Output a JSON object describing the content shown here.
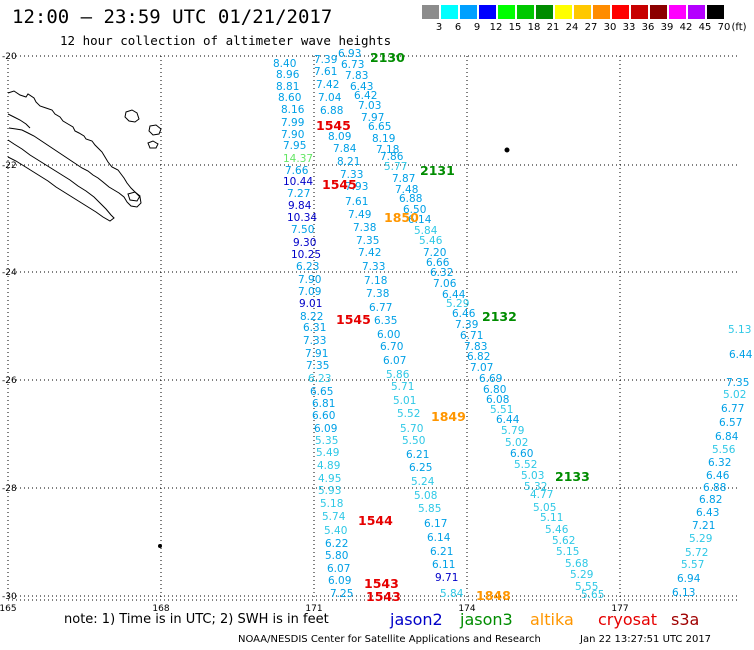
{
  "header": {
    "title": "12:00 – 23:59 UTC 01/21/2017",
    "subtitle": "12 hour collection of altimeter wave heights"
  },
  "colorbar": {
    "colors": [
      "#8c8c8c",
      "#00ffff",
      "#00a0ff",
      "#0000ff",
      "#00ff00",
      "#00c800",
      "#008c00",
      "#ffff00",
      "#ffc800",
      "#ff8c00",
      "#ff0000",
      "#c80000",
      "#8c0000",
      "#ff00ff",
      "#b400ff",
      "#000000"
    ],
    "labels": [
      "3",
      "6",
      "9",
      "12",
      "15",
      "18",
      "21",
      "24",
      "27",
      "30",
      "33",
      "36",
      "39",
      "42",
      "45",
      "70"
    ],
    "unit": "(ft)"
  },
  "colors": {
    "jason2": "#0000c8",
    "jason3": "#008c00",
    "altika": "#ff9600",
    "cryosat": "#e60000",
    "s3a": "#a00000",
    "light_blue": "#00a0e6",
    "light_cyan": "#2ec8e6",
    "light_green": "#64e664"
  },
  "axes": {
    "lat_labels": [
      "-20",
      "-22",
      "-24",
      "-26",
      "-28",
      "-30"
    ],
    "lon_labels": [
      "165",
      "168",
      "171",
      "174",
      "177"
    ]
  },
  "chart_data": {
    "type": "map",
    "measurements": [
      {
        "v": "8.40",
        "c": "light_blue"
      },
      {
        "v": "8.96",
        "c": "light_blue"
      },
      {
        "v": "8.81",
        "c": "light_blue"
      },
      {
        "v": "8.60",
        "c": "light_blue"
      },
      {
        "v": "8.16",
        "c": "light_blue"
      },
      {
        "v": "7.99",
        "c": "light_blue"
      },
      {
        "v": "7.90",
        "c": "light_blue"
      },
      {
        "v": "7.95",
        "c": "light_blue"
      },
      {
        "v": "14.37",
        "c": "light_green"
      },
      {
        "v": "7.66",
        "c": "light_blue"
      },
      {
        "v": "10.44",
        "c": "jason2"
      },
      {
        "v": "7.27",
        "c": "light_blue"
      },
      {
        "v": "9.84",
        "c": "jason2"
      },
      {
        "v": "10.34",
        "c": "jason2"
      },
      {
        "v": "7.50",
        "c": "light_blue"
      },
      {
        "v": "9.30",
        "c": "jason2"
      },
      {
        "v": "10.25",
        "c": "jason2"
      },
      {
        "v": "6.23",
        "c": "light_blue"
      },
      {
        "v": "7.90",
        "c": "light_blue"
      },
      {
        "v": "7.09",
        "c": "light_blue"
      },
      {
        "v": "9.01",
        "c": "jason2"
      },
      {
        "v": "8.22",
        "c": "light_blue"
      },
      {
        "v": "6.31",
        "c": "light_blue"
      },
      {
        "v": "7.33",
        "c": "light_blue"
      },
      {
        "v": "7.91",
        "c": "light_blue"
      },
      {
        "v": "7.35",
        "c": "light_blue"
      },
      {
        "v": "6.23",
        "c": "light_cyan"
      },
      {
        "v": "6.65",
        "c": "light_blue"
      },
      {
        "v": "6.81",
        "c": "light_blue"
      },
      {
        "v": "6.60",
        "c": "light_blue"
      },
      {
        "v": "6.09",
        "c": "light_blue"
      },
      {
        "v": "5.35",
        "c": "light_cyan"
      },
      {
        "v": "5.49",
        "c": "light_cyan"
      },
      {
        "v": "4.89",
        "c": "light_cyan"
      },
      {
        "v": "4.95",
        "c": "light_cyan"
      },
      {
        "v": "5.93",
        "c": "light_cyan"
      },
      {
        "v": "5.18",
        "c": "light_cyan"
      },
      {
        "v": "5.74",
        "c": "light_cyan"
      },
      {
        "v": "5.40",
        "c": "light_cyan"
      },
      {
        "v": "6.22",
        "c": "light_blue"
      },
      {
        "v": "5.80",
        "c": "light_blue"
      },
      {
        "v": "6.07",
        "c": "light_blue"
      },
      {
        "v": "6.09",
        "c": "light_blue"
      },
      {
        "v": "7.25",
        "c": "light_blue"
      },
      {
        "v": "7.39",
        "c": "light_blue"
      },
      {
        "v": "7.61",
        "c": "light_blue"
      },
      {
        "v": "7.42",
        "c": "light_blue"
      },
      {
        "v": "7.04",
        "c": "light_blue"
      },
      {
        "v": "6.88",
        "c": "light_blue"
      },
      {
        "v": "8.09",
        "c": "light_blue"
      },
      {
        "v": "7.84",
        "c": "light_blue"
      },
      {
        "v": "8.21",
        "c": "light_blue"
      },
      {
        "v": "7.33",
        "c": "light_blue"
      },
      {
        "v": "7.93",
        "c": "light_blue"
      },
      {
        "v": "7.61",
        "c": "light_blue"
      },
      {
        "v": "7.49",
        "c": "light_blue"
      },
      {
        "v": "7.38",
        "c": "light_blue"
      },
      {
        "v": "7.35",
        "c": "light_blue"
      },
      {
        "v": "7.42",
        "c": "light_blue"
      },
      {
        "v": "7.33",
        "c": "light_blue"
      },
      {
        "v": "7.18",
        "c": "light_blue"
      },
      {
        "v": "7.38",
        "c": "light_blue"
      },
      {
        "v": "6.77",
        "c": "light_blue"
      },
      {
        "v": "6.35",
        "c": "light_blue"
      },
      {
        "v": "6.00",
        "c": "light_blue"
      },
      {
        "v": "6.70",
        "c": "light_blue"
      },
      {
        "v": "6.07",
        "c": "light_blue"
      },
      {
        "v": "5.86",
        "c": "light_cyan"
      },
      {
        "v": "5.71",
        "c": "light_cyan"
      },
      {
        "v": "5.01",
        "c": "light_cyan"
      },
      {
        "v": "5.52",
        "c": "light_cyan"
      },
      {
        "v": "5.70",
        "c": "light_cyan"
      },
      {
        "v": "5.50",
        "c": "light_cyan"
      },
      {
        "v": "6.21",
        "c": "light_blue"
      },
      {
        "v": "6.25",
        "c": "light_blue"
      },
      {
        "v": "5.24",
        "c": "light_cyan"
      },
      {
        "v": "5.08",
        "c": "light_cyan"
      },
      {
        "v": "5.85",
        "c": "light_cyan"
      },
      {
        "v": "6.17",
        "c": "light_blue"
      },
      {
        "v": "6.14",
        "c": "light_blue"
      },
      {
        "v": "6.21",
        "c": "light_blue"
      },
      {
        "v": "6.11",
        "c": "light_blue"
      },
      {
        "v": "9.71",
        "c": "jason2"
      },
      {
        "v": "5.84",
        "c": "light_cyan"
      },
      {
        "v": "6.93",
        "c": "light_blue"
      },
      {
        "v": "6.73",
        "c": "light_blue"
      },
      {
        "v": "7.83",
        "c": "light_blue"
      },
      {
        "v": "6.43",
        "c": "light_blue"
      },
      {
        "v": "6.42",
        "c": "light_blue"
      },
      {
        "v": "7.03",
        "c": "light_blue"
      },
      {
        "v": "7.97",
        "c": "light_blue"
      },
      {
        "v": "6.65",
        "c": "light_blue"
      },
      {
        "v": "8.19",
        "c": "light_blue"
      },
      {
        "v": "7.18",
        "c": "light_blue"
      },
      {
        "v": "7.86",
        "c": "light_blue"
      },
      {
        "v": "5.77",
        "c": "light_cyan"
      },
      {
        "v": "7.87",
        "c": "light_blue"
      },
      {
        "v": "7.48",
        "c": "light_blue"
      },
      {
        "v": "6.88",
        "c": "light_blue"
      },
      {
        "v": "6.50",
        "c": "light_blue"
      },
      {
        "v": "6.14",
        "c": "light_blue"
      },
      {
        "v": "5.84",
        "c": "light_cyan"
      },
      {
        "v": "5.46",
        "c": "light_cyan"
      },
      {
        "v": "7.20",
        "c": "light_blue"
      },
      {
        "v": "6.66",
        "c": "light_blue"
      },
      {
        "v": "6.32",
        "c": "light_blue"
      },
      {
        "v": "7.06",
        "c": "light_blue"
      },
      {
        "v": "6.44",
        "c": "light_blue"
      },
      {
        "v": "5.29",
        "c": "light_cyan"
      },
      {
        "v": "6.46",
        "c": "light_blue"
      },
      {
        "v": "7.39",
        "c": "light_blue"
      },
      {
        "v": "6.71",
        "c": "light_blue"
      },
      {
        "v": "7.83",
        "c": "light_blue"
      },
      {
        "v": "6.82",
        "c": "light_blue"
      },
      {
        "v": "7.07",
        "c": "light_blue"
      },
      {
        "v": "6.69",
        "c": "light_blue"
      },
      {
        "v": "6.80",
        "c": "light_blue"
      },
      {
        "v": "6.08",
        "c": "light_blue"
      },
      {
        "v": "5.51",
        "c": "light_cyan"
      },
      {
        "v": "6.44",
        "c": "light_blue"
      },
      {
        "v": "5.79",
        "c": "light_cyan"
      },
      {
        "v": "5.02",
        "c": "light_cyan"
      },
      {
        "v": "6.60",
        "c": "light_blue"
      },
      {
        "v": "5.52",
        "c": "light_cyan"
      },
      {
        "v": "5.03",
        "c": "light_cyan"
      },
      {
        "v": "5.32",
        "c": "light_cyan"
      },
      {
        "v": "4.77",
        "c": "light_cyan"
      },
      {
        "v": "5.05",
        "c": "light_cyan"
      },
      {
        "v": "5.11",
        "c": "light_cyan"
      },
      {
        "v": "5.46",
        "c": "light_cyan"
      },
      {
        "v": "5.62",
        "c": "light_cyan"
      },
      {
        "v": "5.15",
        "c": "light_cyan"
      },
      {
        "v": "5.68",
        "c": "light_cyan"
      },
      {
        "v": "5.29",
        "c": "light_cyan"
      },
      {
        "v": "5.55",
        "c": "light_cyan"
      },
      {
        "v": "5.65",
        "c": "light_cyan"
      },
      {
        "v": "5.13",
        "c": "light_cyan"
      },
      {
        "v": "6.44",
        "c": "light_blue"
      },
      {
        "v": "7.35",
        "c": "light_blue"
      },
      {
        "v": "5.02",
        "c": "light_cyan"
      },
      {
        "v": "6.77",
        "c": "light_blue"
      },
      {
        "v": "6.57",
        "c": "light_blue"
      },
      {
        "v": "6.84",
        "c": "light_blue"
      },
      {
        "v": "5.56",
        "c": "light_cyan"
      },
      {
        "v": "6.32",
        "c": "light_blue"
      },
      {
        "v": "6.46",
        "c": "light_blue"
      },
      {
        "v": "6.88",
        "c": "light_blue"
      },
      {
        "v": "6.82",
        "c": "light_blue"
      },
      {
        "v": "6.43",
        "c": "light_blue"
      },
      {
        "v": "7.21",
        "c": "light_blue"
      },
      {
        "v": "5.29",
        "c": "light_cyan"
      },
      {
        "v": "5.72",
        "c": "light_cyan"
      },
      {
        "v": "5.57",
        "c": "light_cyan"
      },
      {
        "v": "6.94",
        "c": "light_blue"
      },
      {
        "v": "6.13",
        "c": "light_blue"
      }
    ],
    "time_labels": [
      {
        "t": "2130",
        "c": "jason3"
      },
      {
        "t": "1545",
        "c": "cryosat"
      },
      {
        "t": "1545",
        "c": "cryosat"
      },
      {
        "t": "2131",
        "c": "jason3"
      },
      {
        "t": "1850",
        "c": "altika"
      },
      {
        "t": "2132",
        "c": "jason3"
      },
      {
        "t": "1545",
        "c": "cryosat"
      },
      {
        "t": "1849",
        "c": "altika"
      },
      {
        "t": "2133",
        "c": "jason3"
      },
      {
        "t": "1544",
        "c": "cryosat"
      },
      {
        "t": "1543",
        "c": "cryosat"
      },
      {
        "t": "1543",
        "c": "cryosat"
      },
      {
        "t": "1848",
        "c": "altika"
      }
    ]
  },
  "footer": {
    "note": "note: 1) Time is in UTC; 2) SWH is in feet",
    "legend": [
      "jason2",
      "jason3",
      "altika",
      "cryosat",
      "s3a"
    ],
    "credit": "NOAA/NESDIS Center for Satellite Applications and Research",
    "timestamp": "Jan 22 13:27:51 UTC 2017"
  }
}
